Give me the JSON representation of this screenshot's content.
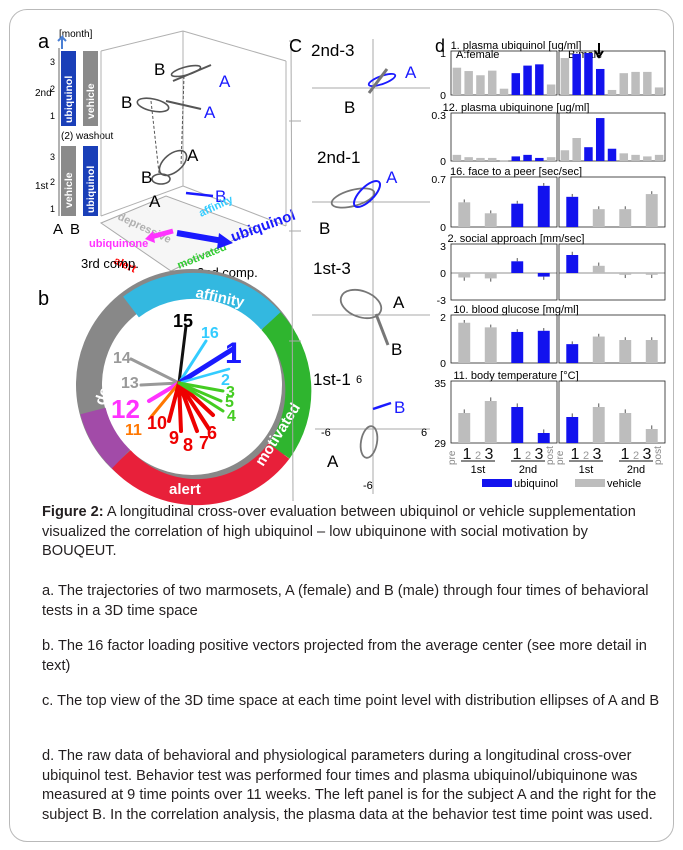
{
  "figure": {
    "caption_title": "Figure 2:",
    "caption_text": " A longitudinal cross-over evaluation between ubiquinol or vehicle supplementation visualized the correlation of high ubiquinol – low ubiquinone with social motivation by BOUQEUT.",
    "notes": [
      "a. The trajectories of two marmosets, A (female) and B (male) through four times of behavioral tests in a 3D time space",
      "b. The 16 factor loading positive vectors projected from the average center (see more detail in text)",
      "c. The top view of the 3D time space at each time point level with distribution ellipses of A and B",
      "d. The raw data of behavioral and physiological parameters during a longitudinal cross-over ubiquinol test. Behavior test was performed four times and plasma ubiquinol/ubiquinone was measured at 9 time points over 11 weeks. The left panel is for the subject A and the right for the subject B. In the correlation analysis, the plasma data at the behavior test time point was used."
    ]
  },
  "panel_a": {
    "letter": "a",
    "unit": "[month]",
    "washout": "(2) washout",
    "period_labels": [
      "2nd",
      "1st"
    ],
    "treatments": [
      "ubiquinol",
      "vehicle"
    ],
    "subjects": [
      "A",
      "B"
    ],
    "ticks": [
      "3",
      "2",
      "1",
      "3",
      "2",
      "1"
    ],
    "axis_labels": [
      "3rd comp.",
      "2nd comp."
    ],
    "factors": [
      "depressive",
      "affinity",
      "ubiquinone",
      "ubiquinol",
      "alert",
      "motivated"
    ],
    "colors": {
      "ubiquinol": "#1a1aff",
      "vehicle": "#a6a6a6",
      "ubiquinone": "#ff33ff",
      "affinity": "#33ccff",
      "alert": "#ff0000",
      "motivated": "#33cc33"
    }
  },
  "panel_b": {
    "letter": "b",
    "ring_labels": [
      "depressive",
      "affinity",
      "motivated",
      "alert"
    ],
    "vector_numbers": [
      "15",
      "16",
      "1",
      "2",
      "14",
      "13",
      "12",
      "11",
      "10",
      "9",
      "8",
      "7",
      "6",
      "5",
      "4",
      "3"
    ]
  },
  "panel_c": {
    "letter": "C",
    "levels": [
      "2nd-3",
      "2nd-1",
      "1st-3",
      "1st-1"
    ],
    "point_labels": [
      "A",
      "B",
      "A",
      "B",
      "A",
      "B",
      "B",
      "A"
    ],
    "axis_ticks": [
      "6",
      "-6",
      "6",
      "-6"
    ]
  },
  "panel_d": {
    "letter": "d",
    "subject_headers": [
      "A:female",
      "B:male"
    ],
    "legend": [
      "ubiquinol",
      "vehicle"
    ],
    "colors": {
      "ubiquinol": "#1212ee",
      "vehicle": "#bdbdbd"
    },
    "x_labels": [
      "pre",
      "1",
      "2",
      "3",
      "post"
    ],
    "period_labels": [
      "1st",
      "2nd"
    ]
  },
  "chart_data": [
    {
      "type": "bar",
      "title": "1. plasma ubiquinol [ug/ml]",
      "ylim": [
        0,
        1
      ],
      "yticks": [
        "1",
        "0"
      ],
      "series": [
        {
          "name": "A:female",
          "values": [
            0.65,
            0.57,
            0.47,
            0.58,
            0.15,
            0.52,
            0.7,
            0.73,
            0.25
          ]
        },
        {
          "name": "B:male",
          "values": [
            0.88,
            0.98,
            1.0,
            0.62,
            0.12,
            0.52,
            0.55,
            0.55,
            0.18
          ]
        }
      ],
      "colors_a": [
        "v",
        "v",
        "v",
        "v",
        "v",
        "b",
        "b",
        "b",
        "v"
      ],
      "colors_b": [
        "v",
        "b",
        "b",
        "b",
        "v",
        "v",
        "v",
        "v",
        "v"
      ]
    },
    {
      "type": "bar",
      "title": "12. plasma ubiquinone [ug/ml]",
      "ylim": [
        0,
        0.3
      ],
      "yticks": [
        "0.3",
        "0"
      ],
      "series": [
        {
          "name": "A:female",
          "values": [
            0.04,
            0.025,
            0.02,
            0.02,
            0.005,
            0.03,
            0.04,
            0.02,
            0.025
          ]
        },
        {
          "name": "B:male",
          "values": [
            0.07,
            0.15,
            0.09,
            0.28,
            0.08,
            0.05,
            0.04,
            0.03,
            0.04
          ]
        }
      ],
      "colors_a": [
        "v",
        "v",
        "v",
        "v",
        "v",
        "b",
        "b",
        "b",
        "v"
      ],
      "colors_b": [
        "v",
        "v",
        "b",
        "b",
        "b",
        "v",
        "v",
        "v",
        "v"
      ]
    },
    {
      "type": "bar",
      "title": "16. face to a peer [sec/sec]",
      "ylim": [
        0,
        0.7
      ],
      "yticks": [
        "0.7",
        "0"
      ],
      "series": [
        {
          "name": "A:female",
          "values": [
            0.36,
            0.2,
            0.34,
            0.6
          ]
        },
        {
          "name": "B:male",
          "values": [
            0.44,
            0.26,
            0.26,
            0.48
          ]
        }
      ],
      "colors_a": [
        "v",
        "v",
        "b",
        "b"
      ],
      "colors_b": [
        "b",
        "v",
        "v",
        "v"
      ]
    },
    {
      "type": "bar",
      "title": "2. social approach [mm/sec]",
      "ylim": [
        -3,
        3
      ],
      "yticks": [
        "3",
        "0",
        "-3"
      ],
      "series": [
        {
          "name": "A:female",
          "values": [
            -0.5,
            -0.6,
            1.3,
            -0.4
          ]
        },
        {
          "name": "B:male",
          "values": [
            2.0,
            0.8,
            -0.2,
            -0.2
          ]
        }
      ],
      "colors_a": [
        "v",
        "v",
        "b",
        "b"
      ],
      "colors_b": [
        "b",
        "v",
        "v",
        "v"
      ]
    },
    {
      "type": "bar",
      "title": "10. blood glucose [mg/ml]",
      "ylim": [
        0,
        2
      ],
      "yticks": [
        "2",
        "0"
      ],
      "series": [
        {
          "name": "A:female",
          "values": [
            1.75,
            1.55,
            1.35,
            1.4
          ]
        },
        {
          "name": "B:male",
          "values": [
            0.82,
            1.15,
            1.0,
            1.0
          ]
        }
      ],
      "colors_a": [
        "v",
        "v",
        "b",
        "b"
      ],
      "colors_b": [
        "b",
        "v",
        "v",
        "v"
      ]
    },
    {
      "type": "bar",
      "title": "11. body temperature [°C]",
      "ylim": [
        29,
        35
      ],
      "yticks": [
        "35",
        "29"
      ],
      "series": [
        {
          "name": "A:female",
          "values": [
            32.0,
            33.2,
            32.6,
            30.0
          ]
        },
        {
          "name": "B:male",
          "values": [
            31.6,
            32.6,
            32.0,
            30.4
          ]
        }
      ],
      "colors_a": [
        "v",
        "v",
        "b",
        "b"
      ],
      "colors_b": [
        "b",
        "v",
        "v",
        "v"
      ]
    }
  ]
}
